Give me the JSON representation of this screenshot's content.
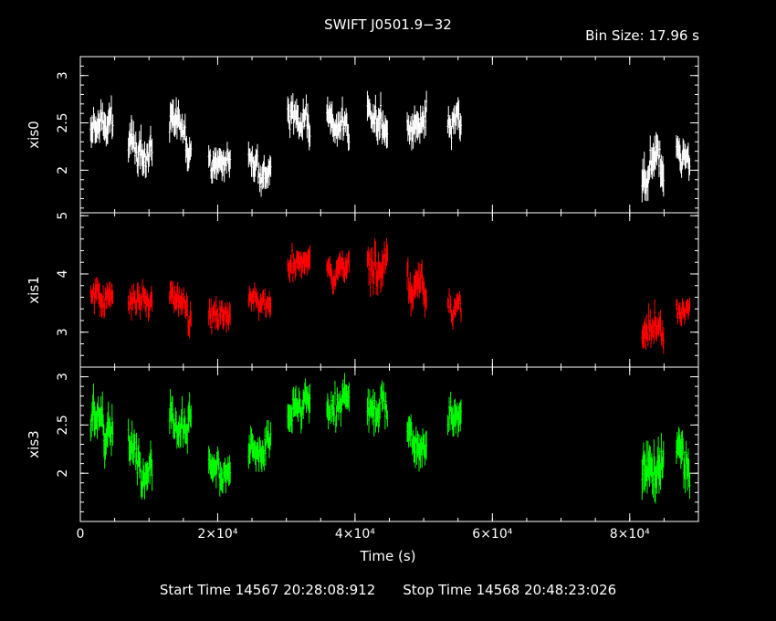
{
  "title": "SWIFT J0501.9−32",
  "bin_size": "Bin Size: 17.96 s",
  "footer": {
    "start": "Start Time 14567 20:28:08:912",
    "stop": "Stop Time 14568 20:48:23:026"
  },
  "chart_data": {
    "type": "scatter",
    "xlabel": "Time (s)",
    "xlim": [
      0,
      90000
    ],
    "x_ticks": [
      0,
      20000,
      40000,
      60000,
      80000
    ],
    "x_tick_labels": [
      "0",
      "2×10⁴",
      "4×10⁴",
      "6×10⁴",
      "8×10⁴"
    ],
    "panels": [
      {
        "name": "xis0",
        "ylabel": "xis0",
        "color": "#ffffff",
        "ylim": [
          1.55,
          3.2
        ],
        "yticks": [
          2,
          2.5,
          3
        ],
        "ytick_labels": [
          "2",
          "2.5",
          "3"
        ],
        "segments": [
          {
            "x0": 1500,
            "x1": 4800,
            "mean": 2.35,
            "sd": 0.16
          },
          {
            "x0": 7000,
            "x1": 10500,
            "mean": 2.25,
            "sd": 0.18
          },
          {
            "x0": 13000,
            "x1": 16200,
            "mean": 2.45,
            "sd": 0.16
          },
          {
            "x0": 18700,
            "x1": 21900,
            "mean": 2.05,
            "sd": 0.15
          },
          {
            "x0": 24500,
            "x1": 27800,
            "mean": 2.15,
            "sd": 0.15
          },
          {
            "x0": 30200,
            "x1": 33500,
            "mean": 2.55,
            "sd": 0.16
          },
          {
            "x0": 35900,
            "x1": 39200,
            "mean": 2.55,
            "sd": 0.16
          },
          {
            "x0": 41800,
            "x1": 44800,
            "mean": 2.6,
            "sd": 0.17
          },
          {
            "x0": 47600,
            "x1": 50500,
            "mean": 2.4,
            "sd": 0.16
          },
          {
            "x0": 53500,
            "x1": 55500,
            "mean": 2.4,
            "sd": 0.16
          },
          {
            "x0": 81800,
            "x1": 85000,
            "mean": 1.85,
            "sd": 0.2
          },
          {
            "x0": 86800,
            "x1": 88800,
            "mean": 2.15,
            "sd": 0.15
          }
        ]
      },
      {
        "name": "xis1",
        "ylabel": "xis1",
        "color": "#ff0000",
        "ylim": [
          2.4,
          5.05
        ],
        "yticks": [
          3,
          4,
          5
        ],
        "ytick_labels": [
          "3",
          "4",
          "5"
        ],
        "segments": [
          {
            "x0": 1500,
            "x1": 4800,
            "mean": 3.75,
            "sd": 0.22
          },
          {
            "x0": 7000,
            "x1": 10500,
            "mean": 3.5,
            "sd": 0.22
          },
          {
            "x0": 13000,
            "x1": 16200,
            "mean": 3.65,
            "sd": 0.22
          },
          {
            "x0": 18700,
            "x1": 21900,
            "mean": 3.25,
            "sd": 0.2
          },
          {
            "x0": 24500,
            "x1": 27800,
            "mean": 3.5,
            "sd": 0.2
          },
          {
            "x0": 30200,
            "x1": 33500,
            "mean": 4.1,
            "sd": 0.22
          },
          {
            "x0": 35900,
            "x1": 39200,
            "mean": 4.2,
            "sd": 0.22
          },
          {
            "x0": 41800,
            "x1": 44800,
            "mean": 4.25,
            "sd": 0.3
          },
          {
            "x0": 47600,
            "x1": 50500,
            "mean": 3.85,
            "sd": 0.28
          },
          {
            "x0": 53500,
            "x1": 55500,
            "mean": 3.55,
            "sd": 0.2
          },
          {
            "x0": 81800,
            "x1": 85000,
            "mean": 3.0,
            "sd": 0.25
          },
          {
            "x0": 86800,
            "x1": 88800,
            "mean": 3.4,
            "sd": 0.2
          }
        ]
      },
      {
        "name": "xis3",
        "ylabel": "xis3",
        "color": "#00ff00",
        "ylim": [
          1.5,
          3.1
        ],
        "yticks": [
          2,
          2.5,
          3
        ],
        "ytick_labels": [
          "2",
          "2.5",
          "3"
        ],
        "segments": [
          {
            "x0": 1500,
            "x1": 4800,
            "mean": 2.4,
            "sd": 0.2
          },
          {
            "x0": 7000,
            "x1": 10500,
            "mean": 2.3,
            "sd": 0.18
          },
          {
            "x0": 13000,
            "x1": 16200,
            "mean": 2.55,
            "sd": 0.18
          },
          {
            "x0": 18700,
            "x1": 21900,
            "mean": 2.1,
            "sd": 0.17
          },
          {
            "x0": 24500,
            "x1": 27800,
            "mean": 2.25,
            "sd": 0.16
          },
          {
            "x0": 30200,
            "x1": 33500,
            "mean": 2.65,
            "sd": 0.17
          },
          {
            "x0": 35900,
            "x1": 39200,
            "mean": 2.7,
            "sd": 0.17
          },
          {
            "x0": 41800,
            "x1": 44800,
            "mean": 2.7,
            "sd": 0.17
          },
          {
            "x0": 47600,
            "x1": 50500,
            "mean": 2.45,
            "sd": 0.17
          },
          {
            "x0": 53500,
            "x1": 55500,
            "mean": 2.55,
            "sd": 0.17
          },
          {
            "x0": 81800,
            "x1": 85000,
            "mean": 2.05,
            "sd": 0.25
          },
          {
            "x0": 86800,
            "x1": 88800,
            "mean": 2.3,
            "sd": 0.18
          }
        ]
      }
    ]
  }
}
